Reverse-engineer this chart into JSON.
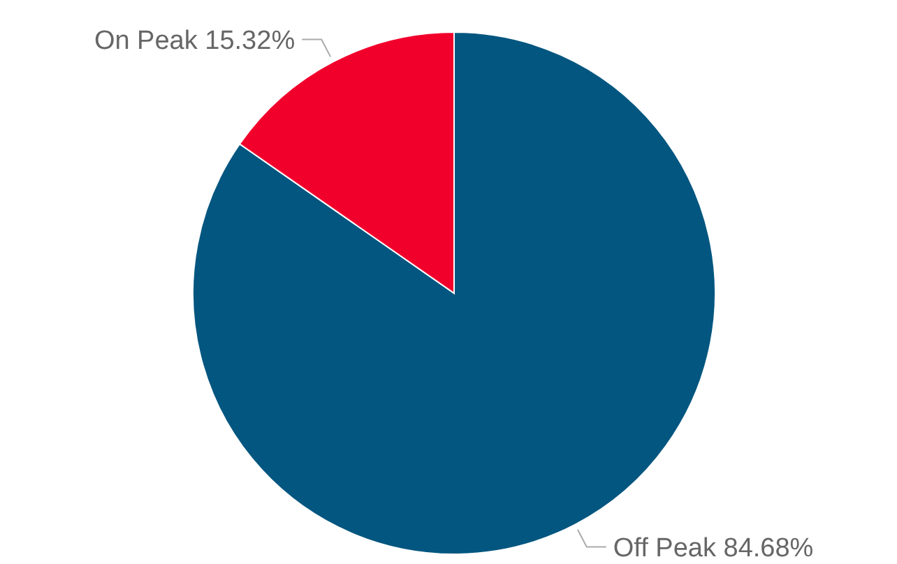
{
  "chart_data": {
    "type": "pie",
    "categories": [
      "Off Peak",
      "On Peak"
    ],
    "values": [
      84.68,
      15.32
    ],
    "colors": [
      "#02567f",
      "#f2002c"
    ],
    "value_labels": [
      "84.68%",
      "15.32%"
    ],
    "data_labels": true
  }
}
